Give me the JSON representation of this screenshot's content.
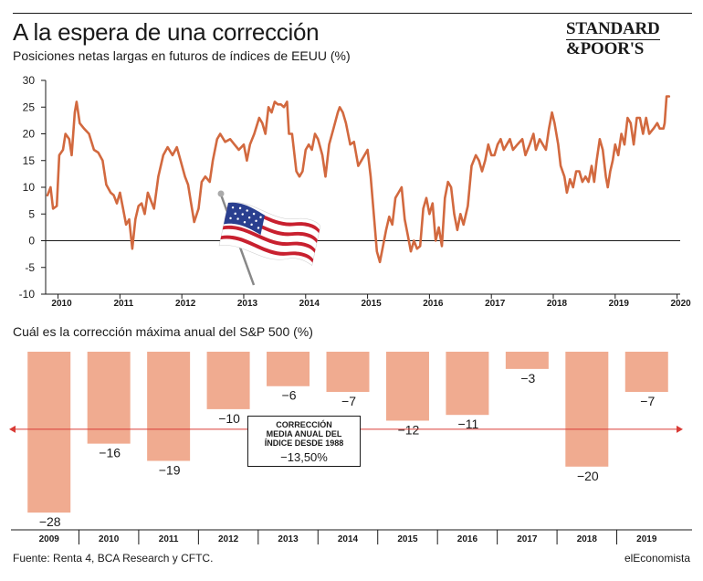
{
  "header": {
    "title": "A la espera de una corrección",
    "subtitle": "Posiciones netas largas en futuros de índices de EEUU (%)",
    "logo_line1": "STANDARD",
    "logo_line2": "&POOR'S"
  },
  "section2": {
    "title": "Cuál es la corrección máxima anual del S&P 500 (%)"
  },
  "annotation": {
    "text": "CORRECCIÓN MEDIA ANUAL DEL ÍNDICE DESDE 1988",
    "value": "−13,50%",
    "numeric": -13.5
  },
  "footer": {
    "source": "Fuente: Renta 4, BCA Research y CFTC.",
    "brand": "elEconomista"
  },
  "colors": {
    "line": "#d2693f",
    "bar": "#f0ab90",
    "ref": "#d93b36",
    "axis": "#1a1a1a"
  },
  "chart_data": [
    {
      "type": "line",
      "title": "Posiciones netas largas en futuros de índices de EEUU (%)",
      "ylim": [
        -10,
        30
      ],
      "yticks": [
        30,
        25,
        20,
        15,
        10,
        5,
        0,
        -5,
        -10
      ],
      "xlim": [
        2009.8,
        2020.05
      ],
      "xticks": [
        "2010",
        "2011",
        "2012",
        "2013",
        "2014",
        "2015",
        "2016",
        "2017",
        "2018",
        "2019",
        "2020"
      ],
      "grid": false,
      "points": [
        [
          2009.83,
          8.5
        ],
        [
          2009.88,
          10
        ],
        [
          2009.92,
          6
        ],
        [
          2009.98,
          6.5
        ],
        [
          2010.02,
          16
        ],
        [
          2010.08,
          17
        ],
        [
          2010.12,
          20
        ],
        [
          2010.18,
          19
        ],
        [
          2010.22,
          16
        ],
        [
          2010.27,
          24
        ],
        [
          2010.3,
          26
        ],
        [
          2010.35,
          22
        ],
        [
          2010.42,
          21
        ],
        [
          2010.5,
          20
        ],
        [
          2010.58,
          17
        ],
        [
          2010.65,
          16.5
        ],
        [
          2010.72,
          15
        ],
        [
          2010.78,
          10.5
        ],
        [
          2010.85,
          9
        ],
        [
          2010.9,
          8.5
        ],
        [
          2010.95,
          7
        ],
        [
          2011.0,
          9
        ],
        [
          2011.05,
          6
        ],
        [
          2011.1,
          3
        ],
        [
          2011.15,
          4
        ],
        [
          2011.2,
          -1.5
        ],
        [
          2011.25,
          4
        ],
        [
          2011.3,
          6.5
        ],
        [
          2011.35,
          7
        ],
        [
          2011.4,
          5
        ],
        [
          2011.45,
          9
        ],
        [
          2011.5,
          7.5
        ],
        [
          2011.55,
          6
        ],
        [
          2011.62,
          12
        ],
        [
          2011.7,
          16
        ],
        [
          2011.77,
          17.5
        ],
        [
          2011.85,
          16
        ],
        [
          2011.92,
          17.5
        ],
        [
          2011.98,
          15
        ],
        [
          2012.05,
          12
        ],
        [
          2012.1,
          10.5
        ],
        [
          2012.15,
          7
        ],
        [
          2012.2,
          3.5
        ],
        [
          2012.27,
          6
        ],
        [
          2012.32,
          11
        ],
        [
          2012.38,
          12
        ],
        [
          2012.45,
          11
        ],
        [
          2012.5,
          15
        ],
        [
          2012.57,
          19
        ],
        [
          2012.62,
          20
        ],
        [
          2012.7,
          18.5
        ],
        [
          2012.78,
          19
        ],
        [
          2012.85,
          18
        ],
        [
          2012.92,
          17
        ],
        [
          2013.0,
          18
        ],
        [
          2013.05,
          15
        ],
        [
          2013.1,
          18
        ],
        [
          2013.17,
          20
        ],
        [
          2013.25,
          23
        ],
        [
          2013.3,
          22
        ],
        [
          2013.35,
          20
        ],
        [
          2013.4,
          25
        ],
        [
          2013.45,
          24
        ],
        [
          2013.5,
          26
        ],
        [
          2013.55,
          25.5
        ],
        [
          2013.6,
          25.5
        ],
        [
          2013.65,
          25
        ],
        [
          2013.7,
          26
        ],
        [
          2013.73,
          20
        ],
        [
          2013.78,
          20
        ],
        [
          2013.85,
          13
        ],
        [
          2013.9,
          12
        ],
        [
          2013.95,
          13
        ],
        [
          2014.0,
          17
        ],
        [
          2014.05,
          18
        ],
        [
          2014.1,
          17
        ],
        [
          2014.15,
          20
        ],
        [
          2014.2,
          19
        ],
        [
          2014.27,
          16
        ],
        [
          2014.32,
          12
        ],
        [
          2014.38,
          18
        ],
        [
          2014.45,
          21
        ],
        [
          2014.52,
          24
        ],
        [
          2014.55,
          25
        ],
        [
          2014.6,
          24
        ],
        [
          2014.65,
          22
        ],
        [
          2014.72,
          18
        ],
        [
          2014.78,
          18.5
        ],
        [
          2014.85,
          14
        ],
        [
          2014.9,
          15
        ],
        [
          2014.95,
          16
        ],
        [
          2015.0,
          17
        ],
        [
          2015.05,
          12
        ],
        [
          2015.1,
          5
        ],
        [
          2015.15,
          -2
        ],
        [
          2015.2,
          -4
        ],
        [
          2015.25,
          -1
        ],
        [
          2015.3,
          2
        ],
        [
          2015.35,
          4.5
        ],
        [
          2015.4,
          3
        ],
        [
          2015.45,
          8
        ],
        [
          2015.5,
          9
        ],
        [
          2015.55,
          10
        ],
        [
          2015.6,
          4
        ],
        [
          2015.65,
          1
        ],
        [
          2015.7,
          -2
        ],
        [
          2015.75,
          0
        ],
        [
          2015.8,
          -1.5
        ],
        [
          2015.85,
          -1
        ],
        [
          2015.9,
          6
        ],
        [
          2015.95,
          8
        ],
        [
          2016.0,
          5
        ],
        [
          2016.05,
          7
        ],
        [
          2016.1,
          0
        ],
        [
          2016.15,
          2.5
        ],
        [
          2016.2,
          -1
        ],
        [
          2016.25,
          8
        ],
        [
          2016.3,
          11
        ],
        [
          2016.35,
          10
        ],
        [
          2016.4,
          5
        ],
        [
          2016.45,
          2
        ],
        [
          2016.5,
          5
        ],
        [
          2016.55,
          3
        ],
        [
          2016.62,
          6.5
        ],
        [
          2016.68,
          14
        ],
        [
          2016.75,
          16
        ],
        [
          2016.8,
          15
        ],
        [
          2016.85,
          13
        ],
        [
          2016.9,
          15
        ],
        [
          2016.95,
          18
        ],
        [
          2017.0,
          16
        ],
        [
          2017.05,
          16
        ],
        [
          2017.1,
          18
        ],
        [
          2017.15,
          19
        ],
        [
          2017.2,
          17
        ],
        [
          2017.25,
          18
        ],
        [
          2017.3,
          19
        ],
        [
          2017.35,
          17
        ],
        [
          2017.42,
          18
        ],
        [
          2017.5,
          19
        ],
        [
          2017.55,
          16
        ],
        [
          2017.62,
          18
        ],
        [
          2017.68,
          20
        ],
        [
          2017.72,
          17
        ],
        [
          2017.78,
          19
        ],
        [
          2017.83,
          18
        ],
        [
          2017.88,
          17
        ],
        [
          2017.93,
          21
        ],
        [
          2017.98,
          24
        ],
        [
          2018.02,
          22
        ],
        [
          2018.08,
          18
        ],
        [
          2018.12,
          14
        ],
        [
          2018.18,
          12
        ],
        [
          2018.22,
          9
        ],
        [
          2018.27,
          11.5
        ],
        [
          2018.32,
          10
        ],
        [
          2018.37,
          13
        ],
        [
          2018.42,
          13
        ],
        [
          2018.47,
          11
        ],
        [
          2018.52,
          12
        ],
        [
          2018.57,
          11
        ],
        [
          2018.62,
          14
        ],
        [
          2018.66,
          11
        ],
        [
          2018.7,
          15
        ],
        [
          2018.75,
          19
        ],
        [
          2018.8,
          17
        ],
        [
          2018.85,
          12
        ],
        [
          2018.88,
          10
        ],
        [
          2018.92,
          13
        ],
        [
          2018.96,
          15
        ],
        [
          2019.0,
          18
        ],
        [
          2019.05,
          16
        ],
        [
          2019.1,
          20
        ],
        [
          2019.15,
          18
        ],
        [
          2019.2,
          23
        ],
        [
          2019.25,
          22
        ],
        [
          2019.3,
          18
        ],
        [
          2019.35,
          23
        ],
        [
          2019.4,
          23
        ],
        [
          2019.45,
          20
        ],
        [
          2019.5,
          23
        ],
        [
          2019.55,
          20
        ],
        [
          2019.62,
          21
        ],
        [
          2019.68,
          22
        ],
        [
          2019.72,
          21
        ],
        [
          2019.78,
          21
        ],
        [
          2019.8,
          22
        ],
        [
          2019.83,
          27
        ],
        [
          2019.87,
          27
        ]
      ]
    },
    {
      "type": "bar",
      "title": "Cuál es la corrección máxima anual del S&P 500 (%)",
      "categories": [
        "2009",
        "2010",
        "2011",
        "2012",
        "2013",
        "2014",
        "2015",
        "2016",
        "2017",
        "2018",
        "2019"
      ],
      "values": [
        -28,
        -16,
        -19,
        -10,
        -6,
        -7,
        -12,
        -11,
        -3,
        -20,
        -7
      ],
      "labels": [
        "−28",
        "−16",
        "−19",
        "−10",
        "−6",
        "−7",
        "−12",
        "−11",
        "−3",
        "−20",
        "−7"
      ],
      "ylim": [
        -31,
        0
      ],
      "reference_line": -13.5
    }
  ]
}
